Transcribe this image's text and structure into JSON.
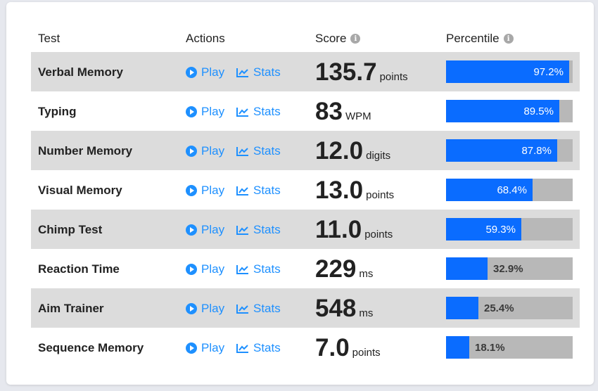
{
  "header": {
    "test": "Test",
    "actions": "Actions",
    "score": "Score",
    "percentile": "Percentile",
    "info_icon": "info-icon"
  },
  "actions": {
    "play_label": "Play",
    "stats_label": "Stats"
  },
  "colors": {
    "accent": "#1e90ff",
    "bar_fill": "#0a6cff",
    "bar_track": "#b8b8b8",
    "row_shade": "#dcdcdc"
  },
  "rows": [
    {
      "name": "Verbal Memory",
      "score": "135.7",
      "unit": "points",
      "percentile_label": "97.2%",
      "percentile": 97.2
    },
    {
      "name": "Typing",
      "score": "83",
      "unit": "WPM",
      "percentile_label": "89.5%",
      "percentile": 89.5
    },
    {
      "name": "Number Memory",
      "score": "12.0",
      "unit": "digits",
      "percentile_label": "87.8%",
      "percentile": 87.8
    },
    {
      "name": "Visual Memory",
      "score": "13.0",
      "unit": "points",
      "percentile_label": "68.4%",
      "percentile": 68.4
    },
    {
      "name": "Chimp Test",
      "score": "11.0",
      "unit": "points",
      "percentile_label": "59.3%",
      "percentile": 59.3
    },
    {
      "name": "Reaction Time",
      "score": "229",
      "unit": "ms",
      "percentile_label": "32.9%",
      "percentile": 32.9
    },
    {
      "name": "Aim Trainer",
      "score": "548",
      "unit": "ms",
      "percentile_label": "25.4%",
      "percentile": 25.4
    },
    {
      "name": "Sequence Memory",
      "score": "7.0",
      "unit": "points",
      "percentile_label": "18.1%",
      "percentile": 18.1
    }
  ]
}
